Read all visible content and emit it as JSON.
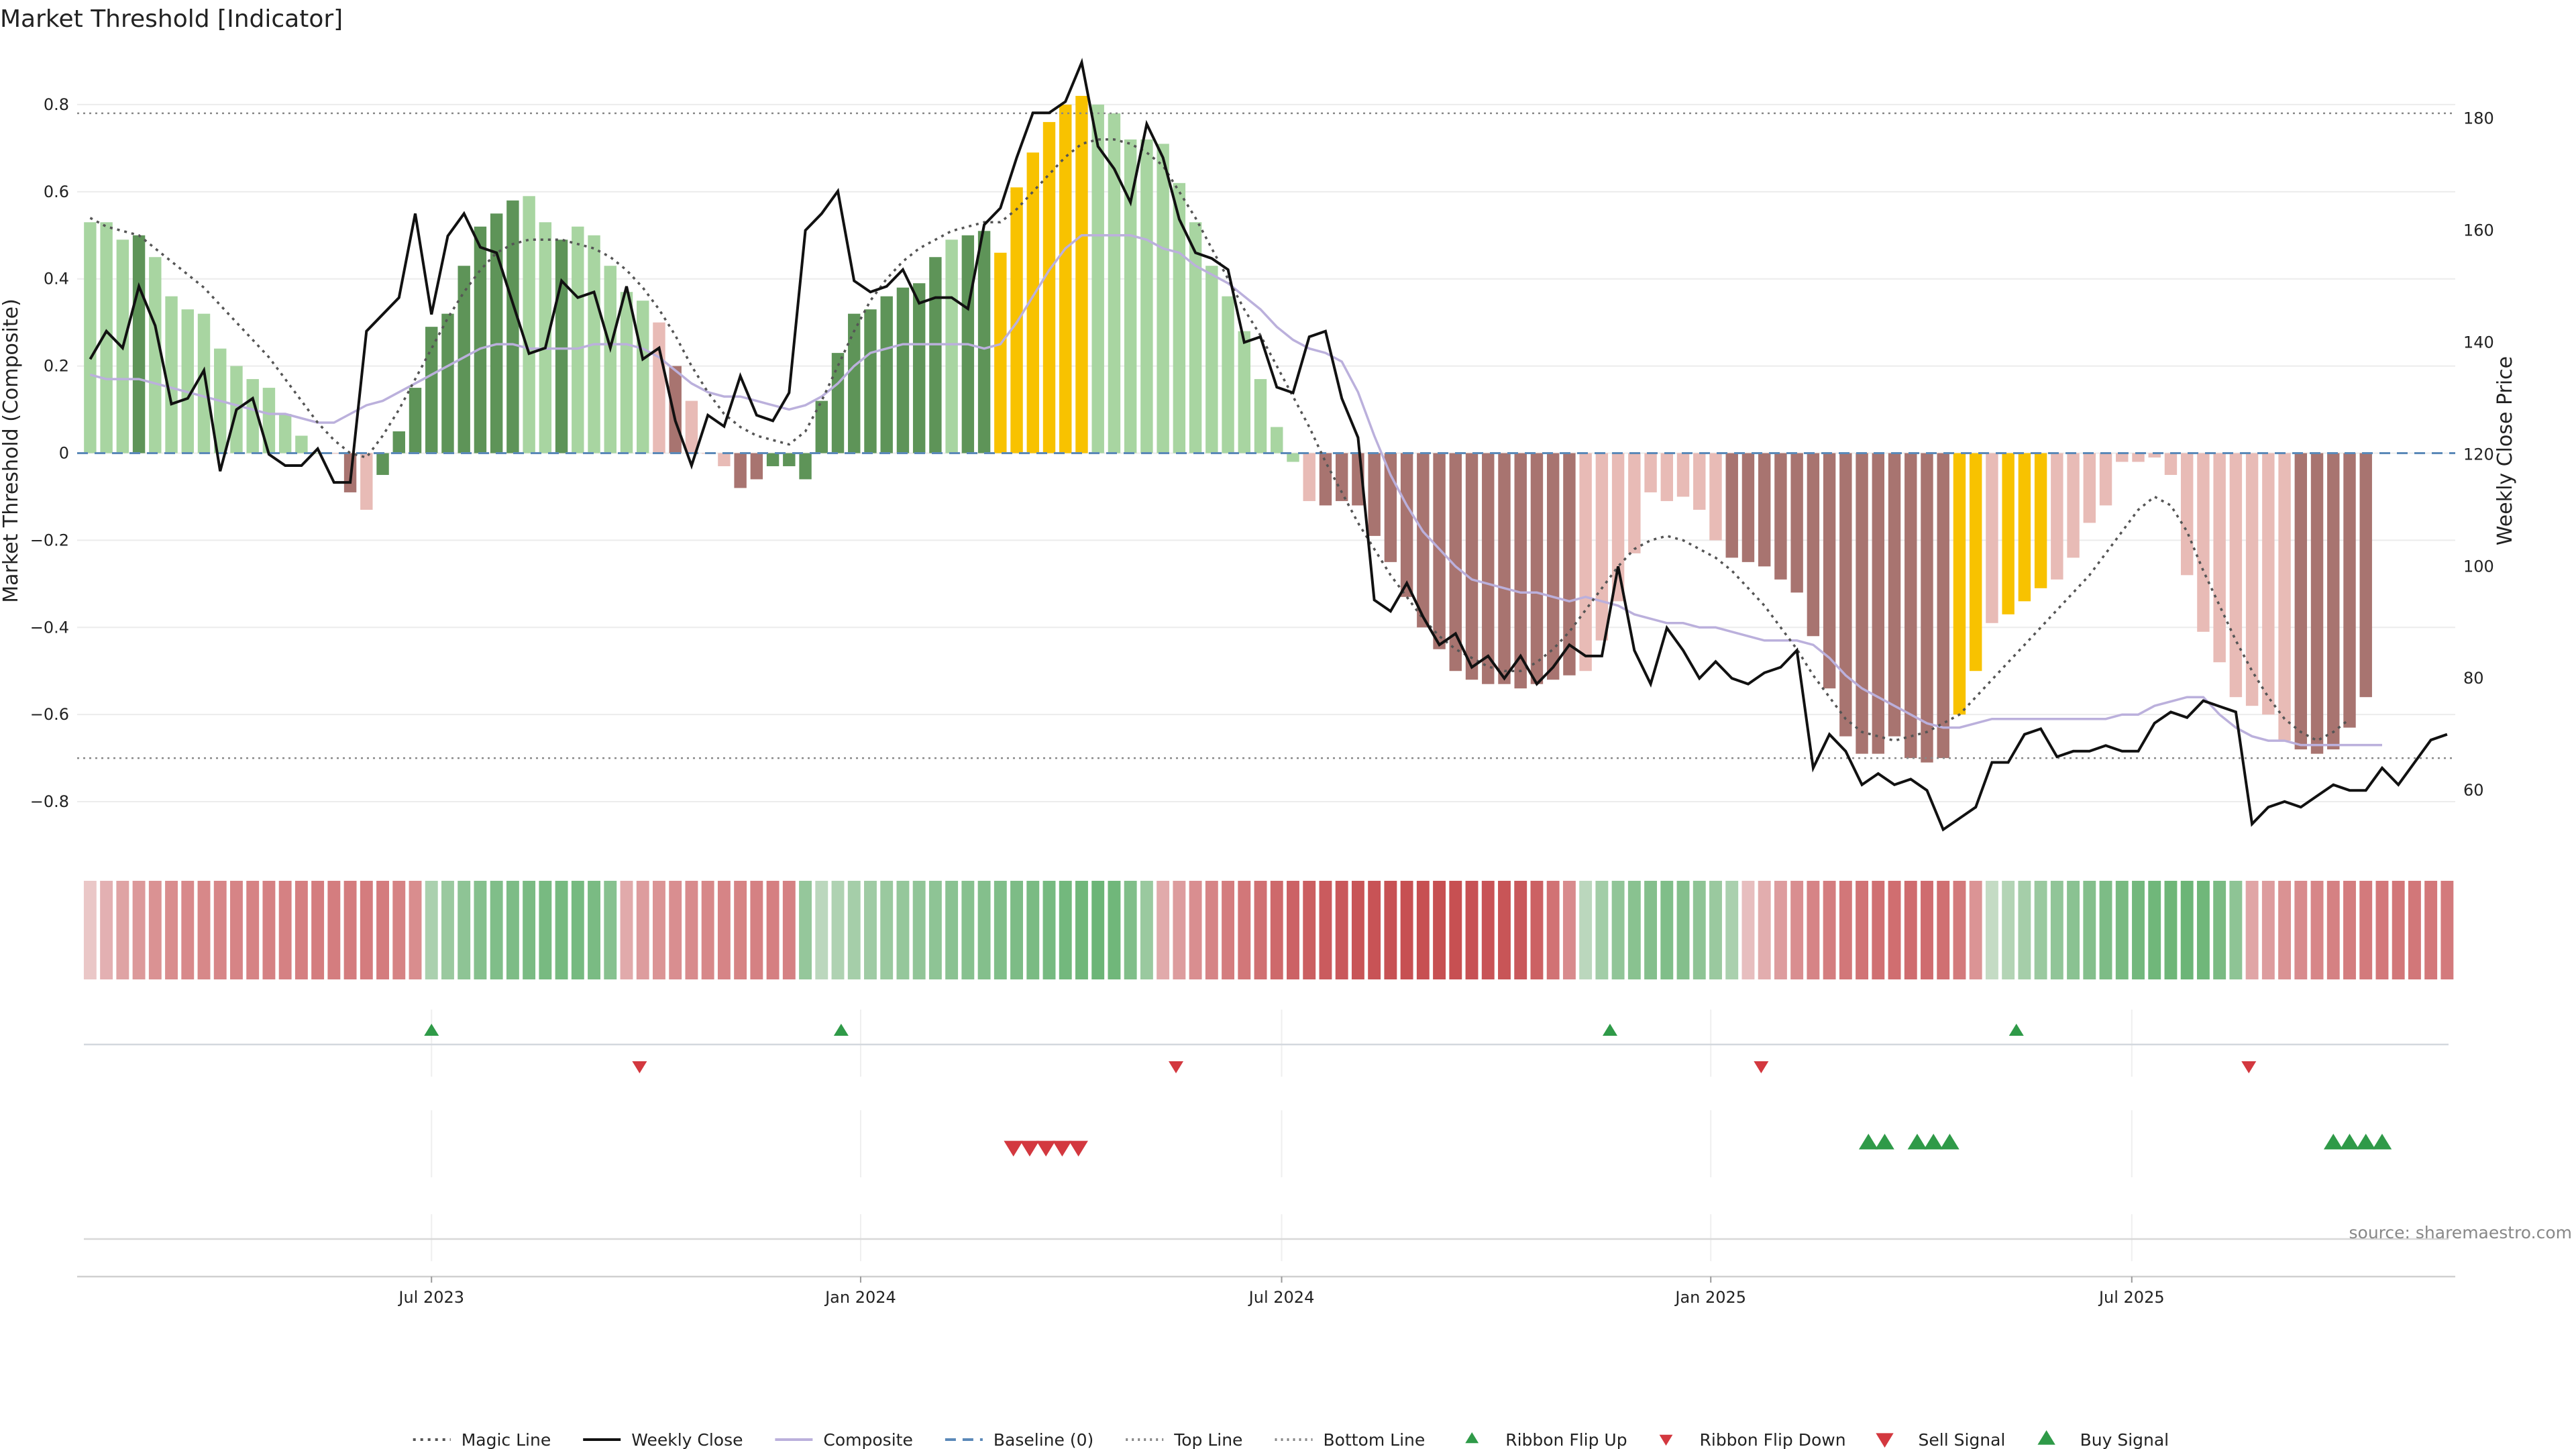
{
  "title": "Market Threshold [Indicator]",
  "source_label": "source: sharemaestro.com",
  "colors": {
    "bull_dark": "#5e9458",
    "bull_light": "#a8d5a1",
    "bear_dark": "#a87470",
    "bear_light": "#e8bbb6",
    "extreme": "#f8c200",
    "close": "#111111",
    "composite": "#bbb0dc",
    "magic": "#555555",
    "baseline": "#5b89b8",
    "threshold": "#888888",
    "sell": "#d3383f",
    "buy": "#2f9a48"
  },
  "legend": [
    {
      "id": "magic",
      "label": "Magic Line",
      "icon": "dotted-line"
    },
    {
      "id": "close",
      "label": "Weekly Close",
      "icon": "solid-line"
    },
    {
      "id": "composite",
      "label": "Composite",
      "icon": "solid-line"
    },
    {
      "id": "baseline",
      "label": "Baseline (0)",
      "icon": "dashed-line"
    },
    {
      "id": "top",
      "label": "Top Line",
      "icon": "dotted-line"
    },
    {
      "id": "bottom",
      "label": "Bottom Line",
      "icon": "dotted-line"
    },
    {
      "id": "flip_up",
      "label": "Ribbon Flip Up",
      "icon": "triangle-up"
    },
    {
      "id": "flip_down",
      "label": "Ribbon Flip Down",
      "icon": "triangle-down"
    },
    {
      "id": "sell",
      "label": "Sell Signal",
      "icon": "triangle-down"
    },
    {
      "id": "buy",
      "label": "Buy Signal",
      "icon": "triangle-up"
    }
  ],
  "chart_data": {
    "type": "bar",
    "title": "Market Threshold [Indicator]",
    "ylabel": "Market Threshold (Composite)",
    "y2label": "Weekly Close Price",
    "ylim": [
      -0.9,
      0.92
    ],
    "y2lim": [
      50.2,
      191.8
    ],
    "yticks": [
      -0.8,
      -0.6,
      -0.4,
      -0.2,
      0,
      0.2,
      0.4,
      0.6,
      0.8
    ],
    "yticklabels": [
      "−0.8",
      "−0.6",
      "−0.4",
      "−0.2",
      "0",
      "0.2",
      "0.4",
      "0.6",
      "0.8"
    ],
    "y2ticks": [
      60,
      80,
      100,
      120,
      140,
      160,
      180
    ],
    "y2ticklabels": [
      "60",
      "80",
      "100",
      "120",
      "140",
      "160",
      "180"
    ],
    "xlim": [
      -0.8,
      145.5
    ],
    "xticks": [
      {
        "label": "Jul 2023",
        "x": 21
      },
      {
        "label": "Jan 2024",
        "x": 47.4
      },
      {
        "label": "Jul 2024",
        "x": 73.3
      },
      {
        "label": "Jan 2025",
        "x": 99.7
      },
      {
        "label": "Jul 2025",
        "x": 125.6
      }
    ],
    "top_line": 0.78,
    "bottom_line": -0.7,
    "baseline": 0,
    "grid": true,
    "legend_position": "bottom",
    "composite_values": [
      0.53,
      0.53,
      0.49,
      0.5,
      0.45,
      0.36,
      0.33,
      0.32,
      0.24,
      0.2,
      0.17,
      0.15,
      0.09,
      0.04,
      0.0,
      0.0,
      -0.09,
      -0.13,
      -0.05,
      0.05,
      0.15,
      0.29,
      0.32,
      0.43,
      0.52,
      0.55,
      0.58,
      0.59,
      0.53,
      0.49,
      0.52,
      0.5,
      0.43,
      0.37,
      0.35,
      0.3,
      0.2,
      0.12,
      0.0,
      -0.03,
      -0.08,
      -0.06,
      -0.03,
      -0.03,
      -0.06,
      0.12,
      0.23,
      0.32,
      0.33,
      0.36,
      0.38,
      0.39,
      0.45,
      0.49,
      0.5,
      0.51,
      0.46,
      0.61,
      0.69,
      0.76,
      0.8,
      0.82,
      0.8,
      0.78,
      0.72,
      0.72,
      0.71,
      0.62,
      0.53,
      0.43,
      0.36,
      0.28,
      0.17,
      0.06,
      -0.02,
      -0.11,
      -0.12,
      -0.11,
      -0.12,
      -0.19,
      -0.25,
      -0.33,
      -0.4,
      -0.45,
      -0.5,
      -0.52,
      -0.53,
      -0.53,
      -0.54,
      -0.53,
      -0.52,
      -0.51,
      -0.5,
      -0.43,
      -0.34,
      -0.23,
      -0.09,
      -0.11,
      -0.1,
      -0.13,
      -0.2,
      -0.24,
      -0.25,
      -0.26,
      -0.29,
      -0.32,
      -0.42,
      -0.54,
      -0.65,
      -0.69,
      -0.69,
      -0.65,
      -0.7,
      -0.71,
      -0.7,
      -0.6,
      -0.5,
      -0.39,
      -0.37,
      -0.34,
      -0.31,
      -0.29,
      -0.24,
      -0.16,
      -0.12,
      -0.02,
      -0.02,
      -0.01,
      -0.05,
      -0.28,
      -0.41,
      -0.48,
      -0.56,
      -0.58,
      -0.6,
      -0.66,
      -0.68,
      -0.69,
      -0.68,
      -0.63,
      -0.56
    ],
    "bar_styles": "LLLDLLLLLLLLLLLbBbDDDDDDDDDLLDLLLLLbBbbbBBDDDDDDDDDDDLDDEEEEEELLLLLLLLLLLLLbBBBBBBBBBBBBBBBBbbbbbbbbbBBBBBBBBBBBBBBEEbEEEbbbbbbbbbbbbbbbBBBBBBBEEEEbbb",
    "weekly_close": [
      137,
      142,
      139,
      150,
      143,
      129,
      130,
      135,
      117,
      128,
      130,
      120,
      118,
      118,
      121,
      115,
      115,
      142,
      145,
      148,
      163,
      145,
      159,
      163,
      157,
      156,
      147,
      138,
      139,
      151,
      148,
      149,
      139,
      150,
      137,
      139,
      126,
      118,
      127,
      125,
      134,
      127,
      126,
      131,
      160,
      163,
      167,
      151,
      149,
      150,
      153,
      147,
      148,
      148,
      146,
      161,
      164,
      173,
      181,
      181,
      183,
      190,
      175,
      171,
      165,
      179,
      173,
      162,
      156,
      155,
      153,
      140,
      141,
      132,
      131,
      141,
      142,
      130,
      123,
      94,
      92,
      97,
      91,
      86,
      88,
      82,
      84,
      80,
      84,
      79,
      82,
      86,
      84,
      84,
      100,
      85,
      79,
      89,
      85,
      80,
      83,
      80,
      79,
      81,
      82,
      85,
      64,
      70,
      67,
      61,
      63,
      61,
      62,
      60,
      53,
      55,
      57,
      65,
      65,
      70,
      71,
      66,
      67,
      67,
      68,
      67,
      67,
      72,
      74,
      73,
      76,
      75,
      74,
      54,
      57,
      58,
      57,
      59,
      61,
      60,
      60,
      64,
      61,
      65,
      69,
      70
    ],
    "composite_line": [
      0.18,
      0.17,
      0.17,
      0.17,
      0.16,
      0.15,
      0.14,
      0.13,
      0.12,
      0.11,
      0.1,
      0.09,
      0.09,
      0.08,
      0.07,
      0.07,
      0.09,
      0.11,
      0.12,
      0.14,
      0.16,
      0.18,
      0.2,
      0.22,
      0.24,
      0.25,
      0.25,
      0.24,
      0.24,
      0.24,
      0.24,
      0.25,
      0.25,
      0.25,
      0.24,
      0.22,
      0.19,
      0.16,
      0.14,
      0.13,
      0.13,
      0.12,
      0.11,
      0.1,
      0.11,
      0.13,
      0.16,
      0.2,
      0.23,
      0.24,
      0.25,
      0.25,
      0.25,
      0.25,
      0.25,
      0.24,
      0.25,
      0.3,
      0.36,
      0.42,
      0.47,
      0.5,
      0.5,
      0.5,
      0.5,
      0.49,
      0.47,
      0.46,
      0.43,
      0.41,
      0.39,
      0.36,
      0.33,
      0.29,
      0.26,
      0.24,
      0.23,
      0.21,
      0.14,
      0.04,
      -0.05,
      -0.12,
      -0.18,
      -0.22,
      -0.26,
      -0.29,
      -0.3,
      -0.31,
      -0.32,
      -0.32,
      -0.33,
      -0.34,
      -0.33,
      -0.34,
      -0.35,
      -0.37,
      -0.38,
      -0.39,
      -0.39,
      -0.4,
      -0.4,
      -0.41,
      -0.42,
      -0.43,
      -0.43,
      -0.43,
      -0.44,
      -0.47,
      -0.51,
      -0.54,
      -0.56,
      -0.58,
      -0.6,
      -0.62,
      -0.63,
      -0.63,
      -0.62,
      -0.61,
      -0.61,
      -0.61,
      -0.61,
      -0.61,
      -0.61,
      -0.61,
      -0.61,
      -0.6,
      -0.6,
      -0.58,
      -0.57,
      -0.56,
      -0.56,
      -0.6,
      -0.63,
      -0.65,
      -0.66,
      -0.66,
      -0.67,
      -0.67,
      -0.67,
      -0.67,
      -0.67,
      -0.67
    ],
    "magic_line": [
      0.54,
      0.52,
      0.51,
      0.5,
      0.47,
      0.44,
      0.41,
      0.38,
      0.34,
      0.3,
      0.26,
      0.22,
      0.17,
      0.12,
      0.07,
      0.03,
      0.0,
      -0.01,
      0.04,
      0.1,
      0.17,
      0.24,
      0.31,
      0.37,
      0.42,
      0.46,
      0.48,
      0.49,
      0.49,
      0.49,
      0.48,
      0.47,
      0.45,
      0.42,
      0.38,
      0.33,
      0.27,
      0.2,
      0.14,
      0.09,
      0.06,
      0.04,
      0.03,
      0.02,
      0.05,
      0.12,
      0.2,
      0.28,
      0.35,
      0.4,
      0.44,
      0.47,
      0.49,
      0.51,
      0.52,
      0.53,
      0.53,
      0.56,
      0.6,
      0.64,
      0.68,
      0.71,
      0.72,
      0.72,
      0.71,
      0.69,
      0.66,
      0.6,
      0.54,
      0.47,
      0.4,
      0.33,
      0.27,
      0.2,
      0.13,
      0.06,
      -0.02,
      -0.09,
      -0.16,
      -0.22,
      -0.28,
      -0.33,
      -0.38,
      -0.42,
      -0.45,
      -0.47,
      -0.49,
      -0.5,
      -0.5,
      -0.48,
      -0.45,
      -0.41,
      -0.36,
      -0.31,
      -0.26,
      -0.22,
      -0.2,
      -0.19,
      -0.2,
      -0.22,
      -0.24,
      -0.27,
      -0.31,
      -0.35,
      -0.4,
      -0.45,
      -0.51,
      -0.56,
      -0.61,
      -0.64,
      -0.65,
      -0.66,
      -0.65,
      -0.64,
      -0.62,
      -0.6,
      -0.56,
      -0.52,
      -0.48,
      -0.44,
      -0.4,
      -0.36,
      -0.32,
      -0.28,
      -0.23,
      -0.18,
      -0.13,
      -0.1,
      -0.12,
      -0.18,
      -0.27,
      -0.35,
      -0.43,
      -0.5,
      -0.56,
      -0.61,
      -0.64,
      -0.66,
      -0.64,
      -0.61
    ],
    "ribbon": "rrrrrrrrrrrrrrrrrrrrrggggggggggggrrrrrrrrrrrggggggggggggggggggggggrrrrrrrrrrrrrrrrrrrrrrrrrrggggggggggrrrrrrrrrrrrrrrggggggggggggggggrrrrrrrrrrr",
    "ribbon_intensity": [
      0.25,
      0.38,
      0.46,
      0.52,
      0.56,
      0.59,
      0.61,
      0.62,
      0.63,
      0.64,
      0.65,
      0.66,
      0.66,
      0.67,
      0.68,
      0.68,
      0.69,
      0.69,
      0.69,
      0.65,
      0.59,
      0.45,
      0.55,
      0.62,
      0.67,
      0.7,
      0.72,
      0.74,
      0.75,
      0.76,
      0.76,
      0.74,
      0.66,
      0.42,
      0.5,
      0.55,
      0.58,
      0.6,
      0.62,
      0.64,
      0.65,
      0.66,
      0.67,
      0.66,
      0.58,
      0.35,
      0.42,
      0.48,
      0.52,
      0.55,
      0.58,
      0.6,
      0.62,
      0.64,
      0.66,
      0.68,
      0.7,
      0.72,
      0.74,
      0.76,
      0.78,
      0.8,
      0.82,
      0.8,
      0.7,
      0.55,
      0.42,
      0.5,
      0.58,
      0.64,
      0.68,
      0.72,
      0.76,
      0.8,
      0.84,
      0.86,
      0.88,
      0.9,
      0.92,
      0.93,
      0.94,
      0.95,
      0.95,
      0.95,
      0.95,
      0.94,
      0.93,
      0.92,
      0.9,
      0.85,
      0.75,
      0.6,
      0.35,
      0.5,
      0.6,
      0.65,
      0.68,
      0.7,
      0.68,
      0.62,
      0.55,
      0.45,
      0.3,
      0.4,
      0.5,
      0.58,
      0.64,
      0.68,
      0.72,
      0.74,
      0.76,
      0.77,
      0.78,
      0.78,
      0.76,
      0.7,
      0.55,
      0.3,
      0.4,
      0.48,
      0.55,
      0.6,
      0.64,
      0.68,
      0.72,
      0.75,
      0.78,
      0.8,
      0.81,
      0.82,
      0.8,
      0.74,
      0.62,
      0.45,
      0.5,
      0.56,
      0.6,
      0.63,
      0.66,
      0.68,
      0.7,
      0.71,
      0.72,
      0.72,
      0.71,
      0.7
    ],
    "ribbon_flip_up": [
      21,
      46.2,
      93.5,
      118.5
    ],
    "ribbon_flip_down": [
      33.8,
      66.8,
      102.8,
      132.8
    ],
    "sell_signals": [
      56.8,
      57.8,
      58.8,
      59.8,
      60.8
    ],
    "buy_signals": [
      109.4,
      110.4,
      112.4,
      113.4,
      114.4,
      138,
      139,
      140,
      141
    ]
  }
}
